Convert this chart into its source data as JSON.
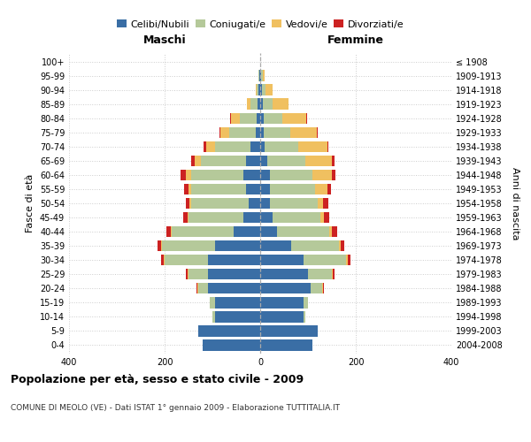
{
  "age_groups": [
    "0-4",
    "5-9",
    "10-14",
    "15-19",
    "20-24",
    "25-29",
    "30-34",
    "35-39",
    "40-44",
    "45-49",
    "50-54",
    "55-59",
    "60-64",
    "65-69",
    "70-74",
    "75-79",
    "80-84",
    "85-89",
    "90-94",
    "95-99",
    "100+"
  ],
  "birth_years": [
    "2004-2008",
    "1999-2003",
    "1994-1998",
    "1989-1993",
    "1984-1988",
    "1979-1983",
    "1974-1978",
    "1969-1973",
    "1964-1968",
    "1959-1963",
    "1954-1958",
    "1949-1953",
    "1944-1948",
    "1939-1943",
    "1934-1938",
    "1929-1933",
    "1924-1928",
    "1919-1923",
    "1914-1918",
    "1909-1913",
    "≤ 1908"
  ],
  "male": {
    "celibi": [
      120,
      130,
      95,
      95,
      110,
      110,
      110,
      95,
      55,
      35,
      25,
      30,
      35,
      30,
      20,
      10,
      8,
      5,
      3,
      2,
      0
    ],
    "coniugati": [
      0,
      0,
      5,
      10,
      20,
      40,
      90,
      110,
      130,
      115,
      120,
      115,
      110,
      95,
      75,
      55,
      35,
      15,
      5,
      2,
      0
    ],
    "vedovi": [
      0,
      0,
      0,
      0,
      2,
      2,
      2,
      2,
      2,
      2,
      3,
      5,
      10,
      12,
      18,
      18,
      18,
      8,
      2,
      0,
      0
    ],
    "divorziati": [
      0,
      0,
      0,
      0,
      2,
      3,
      5,
      8,
      10,
      10,
      8,
      10,
      12,
      8,
      5,
      2,
      2,
      0,
      0,
      0,
      0
    ]
  },
  "female": {
    "nubili": [
      110,
      120,
      90,
      90,
      105,
      100,
      90,
      65,
      35,
      25,
      20,
      20,
      20,
      15,
      10,
      8,
      8,
      5,
      3,
      2,
      0
    ],
    "coniugate": [
      0,
      0,
      5,
      10,
      25,
      50,
      90,
      100,
      110,
      100,
      100,
      95,
      90,
      80,
      70,
      55,
      38,
      20,
      8,
      3,
      0
    ],
    "vedove": [
      0,
      0,
      0,
      0,
      2,
      2,
      3,
      3,
      5,
      8,
      12,
      25,
      40,
      55,
      60,
      55,
      50,
      35,
      15,
      5,
      0
    ],
    "divorziate": [
      0,
      0,
      0,
      0,
      2,
      3,
      5,
      8,
      12,
      12,
      10,
      8,
      8,
      5,
      3,
      2,
      2,
      0,
      0,
      0,
      0
    ]
  },
  "colors": {
    "celibi": "#3a6ea5",
    "coniugati": "#b5c99a",
    "vedovi": "#f0c060",
    "divorziati": "#cc2222"
  },
  "title": "Popolazione per età, sesso e stato civile - 2009",
  "subtitle": "COMUNE DI MEOLO (VE) - Dati ISTAT 1° gennaio 2009 - Elaborazione TUTTITALIA.IT",
  "xlabel_left": "Maschi",
  "xlabel_right": "Femmine",
  "ylabel_left": "Fasce di età",
  "ylabel_right": "Anni di nascita",
  "xlim": 400,
  "background_color": "#ffffff",
  "grid_color": "#cccccc"
}
